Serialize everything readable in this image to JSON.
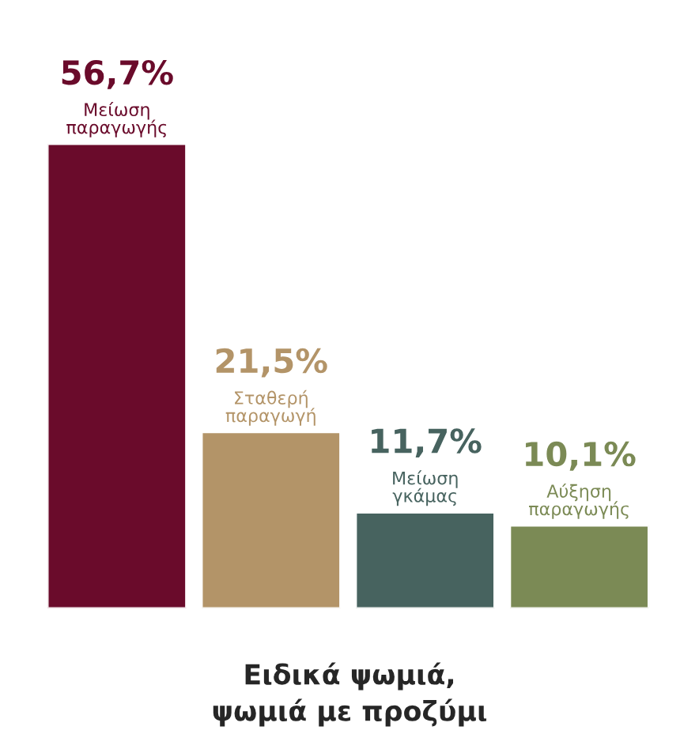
{
  "chart_data": {
    "type": "bar",
    "title": "Ειδικά ψωμιά,\nψωμιά με προζύμι",
    "categories": [
      "Μείωση\nπαραγωγής",
      "Σταθερή\nπαραγωγή",
      "Μείωση\nγκάμας",
      "Αύξηση\nπαραγωγής"
    ],
    "values": [
      56.7,
      21.5,
      11.7,
      10.1
    ],
    "value_labels": [
      "56,7%",
      "21,5%",
      "11,7%",
      "10,1%"
    ],
    "colors": [
      "#6a0b2b",
      "#b39468",
      "#47635f",
      "#7b8a55"
    ]
  }
}
